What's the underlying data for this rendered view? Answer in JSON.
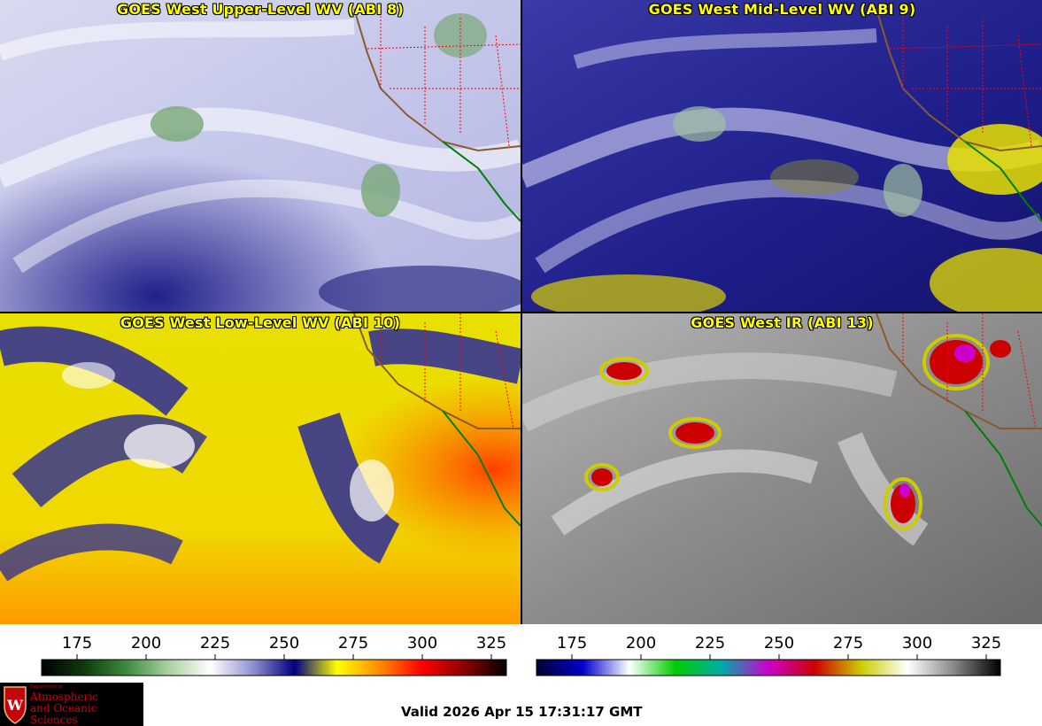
{
  "panels": [
    {
      "title": "GOES West Upper-Level WV (ABI 8)"
    },
    {
      "title": "GOES West Mid-Level WV (ABI 9)"
    },
    {
      "title": "GOES West Low-Level WV (ABI 10)"
    },
    {
      "title": "GOES West IR (ABI 13)"
    }
  ],
  "colorbars": {
    "left": {
      "ticks": [
        "175",
        "200",
        "225",
        "250",
        "275",
        "300",
        "325"
      ],
      "stops": [
        "#000000",
        "#0f3a0f",
        "#3c8a3c",
        "#aad0a0",
        "#ffffff",
        "#9090d0",
        "#000080",
        "#ffff00",
        "#ff8c00",
        "#ff0000",
        "#8b0000",
        "#000000"
      ]
    },
    "right": {
      "ticks": [
        "175",
        "200",
        "225",
        "250",
        "275",
        "300",
        "325"
      ],
      "stops": [
        "#000033",
        "#0000cc",
        "#ffffff",
        "#00cc00",
        "#00aaaa",
        "#cc00cc",
        "#cc0000",
        "#cccc00",
        "#ffffff",
        "#888888",
        "#000000"
      ]
    }
  },
  "logo": {
    "dept": "Department of",
    "line1": "Atmospheric",
    "line2": "and Oceanic Sciences"
  },
  "valid_text": "Valid 2026 Apr 15 17:31:17 GMT",
  "colors": {
    "title": "#ffff00",
    "border_state": "#ff0000",
    "coast": "#8b5a2b",
    "mexico_coast": "#008000"
  }
}
